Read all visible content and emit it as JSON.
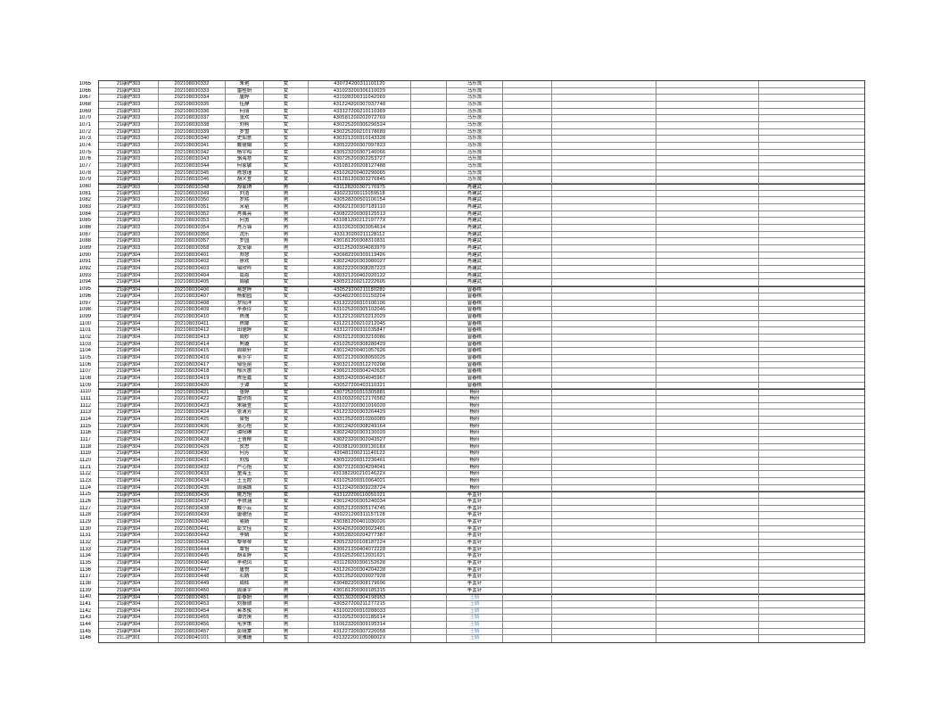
{
  "page": {
    "background": "#ffffff"
  },
  "table": {
    "blue_teacher": "王婧",
    "colors": {
      "text": "#000000",
      "teacher_highlight": "#5b9bd5",
      "grid_border": "#8a8a8a",
      "outer_border": "#404040"
    },
    "columns": [
      "class",
      "student-id",
      "name",
      "gender",
      "id-number",
      "blank-1",
      "teacher",
      "blank-2",
      "blank-3",
      "blank-4",
      "blank-5"
    ],
    "rows": [
      [
        "1065",
        "21康护303",
        "202108030332",
        "朱艳",
        "女",
        "430724200311101120",
        "马乐良"
      ],
      [
        "1066",
        "21康护303",
        "202108030333",
        "雷桂妍",
        "女",
        "431023200306110029",
        "马乐良"
      ],
      [
        "1067",
        "21康护303",
        "202108030334",
        "唐婷",
        "女",
        "431028200311042069",
        "马乐良"
      ],
      [
        "1068",
        "21康护303",
        "202108030335",
        "伍静",
        "女",
        "431224200307037748",
        "马乐良"
      ],
      [
        "1069",
        "21康护303",
        "202108030336",
        "何丽",
        "女",
        "433127200210110369",
        "马乐良"
      ],
      [
        "1070",
        "21康护303",
        "202108030337",
        "张欢",
        "女",
        "430581200202072769",
        "马乐良"
      ],
      [
        "1071",
        "21康护303",
        "202108030338",
        "刘柯",
        "女",
        "430225200306296524",
        "马乐良"
      ],
      [
        "1072",
        "21康护303",
        "202108030339",
        "罗雪",
        "女",
        "430225200210178689",
        "马乐良"
      ],
      [
        "1073",
        "21康护303",
        "202108030340",
        "史如意",
        "女",
        "430321200310143328",
        "马乐良"
      ],
      [
        "1074",
        "21康护303",
        "202108030341",
        "戴德娟",
        "女",
        "430522200307097823",
        "马乐良"
      ],
      [
        "1075",
        "21康护303",
        "202108030342",
        "杨宇鸣",
        "女",
        "430523200307140066",
        "马乐良"
      ],
      [
        "1076",
        "21康护303",
        "202108030343",
        "骆海慧",
        "女",
        "430725200302253727",
        "马乐良"
      ],
      [
        "1077",
        "21康护303",
        "202108030344",
        "何家敏",
        "女",
        "431081200208127488",
        "马乐良"
      ],
      [
        "1078",
        "21康护303",
        "202108030345",
        "陈慧瑾",
        "女",
        "431026200402290065",
        "马乐良"
      ],
      [
        "1079",
        "21康护303",
        "202108030346",
        "胡义萱",
        "女",
        "431281200303276845",
        "马乐良"
      ],
      [
        "1080",
        "21康护303",
        "202108030348",
        "郑家琪",
        "男",
        "431128200307176975",
        "肖建武"
      ],
      [
        "1081",
        "21康护303",
        "202108030349",
        "刘浩",
        "男",
        "430223200111059518",
        "肖建武"
      ],
      [
        "1082",
        "21康护303",
        "202108030350",
        "罗熙",
        "男",
        "430528200501106154",
        "肖建武"
      ],
      [
        "1083",
        "21康护303",
        "202108030351",
        "宋韬",
        "男",
        "430621200307189110",
        "肖建武"
      ],
      [
        "1084",
        "21康护303",
        "202108030352",
        "肖禹亮",
        "男",
        "430822200309125513",
        "肖建武"
      ],
      [
        "1085",
        "21康护303",
        "202108030353",
        "何勇",
        "男",
        "43108120021219777X",
        "肖建武"
      ],
      [
        "1086",
        "21康护303",
        "202108030354",
        "肖万锦",
        "男",
        "431026200303054614",
        "肖建武"
      ],
      [
        "1087",
        "21康护303",
        "202108030356",
        "沈乐",
        "男",
        "433130200211128112",
        "肖建武"
      ],
      [
        "1088",
        "21康护303",
        "202108030357",
        "罗园",
        "男",
        "430181200308310831",
        "肖建武"
      ],
      [
        "1089",
        "21康护303",
        "202108030358",
        "龙安康",
        "男",
        "431125200304083979",
        "肖建武"
      ],
      [
        "1090",
        "21康护304",
        "202108030401",
        "郑慧",
        "女",
        "430682200309119426",
        "肖建武"
      ],
      [
        "1091",
        "21康护304",
        "202108030402",
        "廖欢",
        "女",
        "430224200303080027",
        "肖建武"
      ],
      [
        "1092",
        "21康护304",
        "202108030403",
        "邹欣吟",
        "女",
        "430222200308287223",
        "肖建武"
      ],
      [
        "1093",
        "21康护304",
        "202108030404",
        "南恩",
        "女",
        "430321200402020122",
        "肖建武"
      ],
      [
        "1094",
        "21康护304",
        "202108030405",
        "周敏",
        "女",
        "430521200212222605",
        "肖建武"
      ],
      [
        "1095",
        "21康护304",
        "202108030406",
        "易楚婷",
        "女",
        "430529200211180280",
        "曾春桃"
      ],
      [
        "1096",
        "21康护304",
        "202108030407",
        "杨勤园",
        "女",
        "430482200101150204",
        "曾春桃"
      ],
      [
        "1097",
        "21康护304",
        "202108030408",
        "罗阳洋",
        "女",
        "431322200310100106",
        "曾春桃"
      ],
      [
        "1098",
        "21康护304",
        "202108030409",
        "李燕玲",
        "女",
        "431025200305102046",
        "曾春桃"
      ],
      [
        "1099",
        "21康护304",
        "202108030410",
        "陈瑰",
        "女",
        "431221200210212029",
        "曾春桃"
      ],
      [
        "1100",
        "21康护304",
        "202108030411",
        "陈娜",
        "女",
        "431221200210212045",
        "曾春桃"
      ],
      [
        "1101",
        "21康护304",
        "202108030412",
        "田德婷",
        "女",
        "433127200311035847",
        "曾春桃"
      ],
      [
        "1102",
        "21康护304",
        "202108030413",
        "周妙",
        "女",
        "430321200303210086",
        "曾春桃"
      ],
      [
        "1103",
        "21康护304",
        "202108030414",
        "熊璇",
        "女",
        "431025200308280429",
        "曾春桃"
      ],
      [
        "1104",
        "21康护304",
        "202108030415",
        "周颖轩",
        "女",
        "430124200401057626",
        "曾春桃"
      ],
      [
        "1105",
        "21康护304",
        "202108030416",
        "蒋莎宇",
        "女",
        "430121200308050025",
        "曾春桃"
      ],
      [
        "1106",
        "21康护304",
        "202108030417",
        "邹佳丽",
        "女",
        "430321200312270208",
        "曾春桃"
      ],
      [
        "1107",
        "21康护304",
        "202108030418",
        "郁庆惠",
        "女",
        "430621200304242626",
        "曾春桃"
      ],
      [
        "1108",
        "21康护304",
        "202108030419",
        "陈佳嘉",
        "女",
        "430524200304045967",
        "曾春桃"
      ],
      [
        "1109",
        "21康护304",
        "202108030420",
        "于谭",
        "女",
        "430527200403110321",
        "曾春桃"
      ],
      [
        "1110",
        "21康护304",
        "202108030421",
        "张婷",
        "女",
        "430725200310305881",
        "杨府"
      ],
      [
        "1111",
        "21康护304",
        "202108030422",
        "雷欣雨",
        "女",
        "431003200212176582",
        "杨府"
      ],
      [
        "1112",
        "21康护304",
        "202108030423",
        "朱毓萱",
        "女",
        "431027200301016020",
        "杨府"
      ],
      [
        "1113",
        "21康护304",
        "202108030424",
        "张清芳",
        "女",
        "431223200303264429",
        "杨府"
      ],
      [
        "1114",
        "21康护304",
        "202108030425",
        "梁怡",
        "女",
        "433125200310260089",
        "杨府"
      ],
      [
        "1115",
        "21康护304",
        "202108030426",
        "张心怡",
        "女",
        "430124200308249164",
        "杨府"
      ],
      [
        "1116",
        "21康护304",
        "202108030427",
        "谭阳琳",
        "女",
        "430224200303130020",
        "杨府"
      ],
      [
        "1117",
        "21康护304",
        "202108030428",
        "王倩柳",
        "女",
        "430223200302043527",
        "杨府"
      ],
      [
        "1118",
        "21康护304",
        "202108030429",
        "贺思",
        "女",
        "43038120030913018X",
        "杨府"
      ],
      [
        "1119",
        "21康护304",
        "202108030430",
        "何芳",
        "女",
        "430481200211140123",
        "杨府"
      ],
      [
        "1120",
        "21康护304",
        "202108030431",
        "刘加",
        "女",
        "430522200312236461",
        "杨府"
      ],
      [
        "1121",
        "21康护304",
        "202108030432",
        "严心怡",
        "女",
        "430721200304294041",
        "杨府"
      ],
      [
        "1122",
        "21康护304",
        "202108030433",
        "童海玉",
        "女",
        "43138220021014622X",
        "杨府"
      ],
      [
        "1123",
        "21康护304",
        "202108030434",
        "王玉姣",
        "女",
        "431025200310064021",
        "杨府"
      ],
      [
        "1124",
        "21康护304",
        "202108030435",
        "周瑞城",
        "女",
        "431224200309228724",
        "杨府"
      ],
      [
        "1125",
        "21康护304",
        "202108030436",
        "姚方怡",
        "女",
        "433122200110051021",
        "李孟针"
      ],
      [
        "1126",
        "21康护304",
        "202108030437",
        "李轶涵",
        "女",
        "430124200305240034",
        "李孟针"
      ],
      [
        "1127",
        "21康护304",
        "202108030438",
        "戴小云",
        "女",
        "430521200305174745",
        "李孟针"
      ],
      [
        "1128",
        "21康护304",
        "202108030439",
        "唐德恬",
        "女",
        "430221200311157128",
        "李孟针"
      ],
      [
        "1129",
        "21康护304",
        "202108030440",
        "易婧",
        "女",
        "430381200401030026",
        "李孟针"
      ],
      [
        "1130",
        "21康护304",
        "202108030441",
        "彭文佳",
        "女",
        "430426200309023481",
        "李孟针"
      ],
      [
        "1131",
        "21康护304",
        "202108030442",
        "李婧",
        "女",
        "430528200204277387",
        "李孟针"
      ],
      [
        "1132",
        "21康护304",
        "202108030443",
        "黎琴琴",
        "女",
        "430523200108187224",
        "李孟针"
      ],
      [
        "1133",
        "21康护304",
        "202108030444",
        "覃怡",
        "女",
        "430621200404072228",
        "李孟针"
      ],
      [
        "1134",
        "21康护304",
        "202108030445",
        "胡亚婷",
        "女",
        "431025200212031621",
        "李孟针"
      ],
      [
        "1135",
        "21康护304",
        "202108030446",
        "李艳凤",
        "女",
        "431129200306152628",
        "李孟针"
      ],
      [
        "1136",
        "21康护304",
        "202108030447",
        "唐悦",
        "女",
        "431226200304204228",
        "李孟针"
      ],
      [
        "1137",
        "21康护304",
        "202108030448",
        "石婧",
        "女",
        "433125200209027928",
        "李孟针"
      ],
      [
        "1138",
        "21康护304",
        "202108030449",
        "周辉",
        "男",
        "430482200308179696",
        "李孟针"
      ],
      [
        "1139",
        "21康护304",
        "202108030450",
        "周康宇",
        "男",
        "430181200309185315",
        "李孟针"
      ],
      [
        "1140",
        "21康护304",
        "202108030451",
        "彭泰妍",
        "男",
        "433130200304198953",
        "王婧"
      ],
      [
        "1141",
        "21康护304",
        "202108030453",
        "刘振勋",
        "男",
        "430527200211277215",
        "王婧"
      ],
      [
        "1142",
        "21康护304",
        "202108030454",
        "蒋本俊",
        "男",
        "431002200310288033",
        "王婧"
      ],
      [
        "1143",
        "21康护304",
        "202108030455",
        "谭仿庚",
        "男",
        "431025200301185614",
        "王婧"
      ],
      [
        "1144",
        "21康护304",
        "202108030456",
        "毛学策",
        "男",
        "510623200309195314",
        "王婧"
      ],
      [
        "1145",
        "21康护304",
        "202108030457",
        "彭靖棠",
        "男",
        "431227200307220058",
        "王婧"
      ],
      [
        "1146",
        "21口护301",
        "202108040101",
        "吴雅珊",
        "女",
        "43132220010508002X",
        "王婧"
      ]
    ]
  }
}
